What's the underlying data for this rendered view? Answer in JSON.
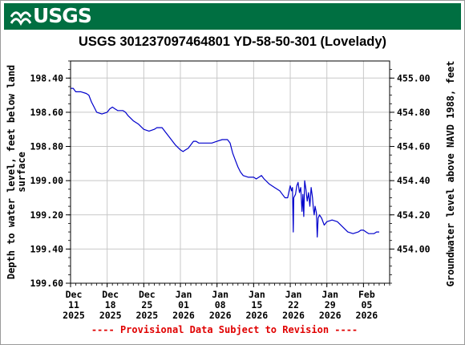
{
  "header": {
    "agency": "USGS",
    "brand_color": "#006f41"
  },
  "footer": {
    "notice": "---- Provisional Data Subject to Revision ----",
    "color": "#e00000"
  },
  "chart_data": {
    "type": "line",
    "title": "USGS 301237097464801 YD-58-50-301 (Lovelady)",
    "ylabel_left": "Depth to water level, feet below land surface",
    "ylabel_right": "Groundwater level above NAVD 1988, feet",
    "y_left_inverted": true,
    "ylim_left": [
      198.3,
      199.6
    ],
    "yticks_left": [
      "198.40",
      "198.60",
      "198.80",
      "199.00",
      "199.20",
      "199.40",
      "199.60"
    ],
    "yticks_left_values": [
      198.4,
      198.6,
      198.8,
      199.0,
      199.2,
      199.4,
      199.6
    ],
    "yticks_right": [
      "455.00",
      "454.80",
      "454.60",
      "454.40",
      "454.20",
      "454.00"
    ],
    "yticks_right_values": [
      455.0,
      454.8,
      454.6,
      454.4,
      454.2,
      454.0
    ],
    "right_axis_offset": 653.4,
    "xlim": [
      "2025-12-11",
      "2026-02-10"
    ],
    "xticks": [
      {
        "date": "2025-12-11",
        "l1": "Dec",
        "l2": "11",
        "l3": "2025"
      },
      {
        "date": "2025-12-18",
        "l1": "Dec",
        "l2": "18",
        "l3": "2025"
      },
      {
        "date": "2025-12-25",
        "l1": "Dec",
        "l2": "25",
        "l3": "2025"
      },
      {
        "date": "2026-01-01",
        "l1": "Jan",
        "l2": "01",
        "l3": "2026"
      },
      {
        "date": "2026-01-08",
        "l1": "Jan",
        "l2": "08",
        "l3": "2026"
      },
      {
        "date": "2026-01-15",
        "l1": "Jan",
        "l2": "15",
        "l3": "2026"
      },
      {
        "date": "2026-01-22",
        "l1": "Jan",
        "l2": "22",
        "l3": "2026"
      },
      {
        "date": "2026-01-29",
        "l1": "Jan",
        "l2": "29",
        "l3": "2026"
      },
      {
        "date": "2026-02-05",
        "l1": "Feb",
        "l2": "05",
        "l3": "2026"
      }
    ],
    "grid": true,
    "series": [
      {
        "color": "#0000cc",
        "points": [
          [
            "2025-12-11T00:00",
            198.46
          ],
          [
            "2025-12-11T12:00",
            198.46
          ],
          [
            "2025-12-12T00:00",
            198.48
          ],
          [
            "2025-12-13T00:00",
            198.48
          ],
          [
            "2025-12-14T00:00",
            198.49
          ],
          [
            "2025-12-14T12:00",
            198.5
          ],
          [
            "2025-12-15T00:00",
            198.54
          ],
          [
            "2025-12-15T12:00",
            198.57
          ],
          [
            "2025-12-16T00:00",
            198.6
          ],
          [
            "2025-12-17T00:00",
            198.61
          ],
          [
            "2025-12-18T00:00",
            198.6
          ],
          [
            "2025-12-18T12:00",
            198.58
          ],
          [
            "2025-12-19T00:00",
            198.57
          ],
          [
            "2025-12-19T12:00",
            198.58
          ],
          [
            "2025-12-20T00:00",
            198.59
          ],
          [
            "2025-12-21T00:00",
            198.59
          ],
          [
            "2025-12-21T12:00",
            198.6
          ],
          [
            "2025-12-22T00:00",
            198.62
          ],
          [
            "2025-12-23T00:00",
            198.65
          ],
          [
            "2025-12-24T00:00",
            198.67
          ],
          [
            "2025-12-25T00:00",
            198.7
          ],
          [
            "2025-12-26T00:00",
            198.71
          ],
          [
            "2025-12-27T00:00",
            198.7
          ],
          [
            "2025-12-27T12:00",
            198.69
          ],
          [
            "2025-12-28T00:00",
            198.69
          ],
          [
            "2025-12-28T12:00",
            198.69
          ],
          [
            "2025-12-29T00:00",
            198.71
          ],
          [
            "2025-12-30T00:00",
            198.75
          ],
          [
            "2025-12-31T00:00",
            198.79
          ],
          [
            "2026-01-01T00:00",
            198.82
          ],
          [
            "2026-01-01T12:00",
            198.83
          ],
          [
            "2026-01-02T00:00",
            198.82
          ],
          [
            "2026-01-02T12:00",
            198.81
          ],
          [
            "2026-01-03T00:00",
            198.79
          ],
          [
            "2026-01-03T12:00",
            198.77
          ],
          [
            "2026-01-04T00:00",
            198.77
          ],
          [
            "2026-01-04T12:00",
            198.78
          ],
          [
            "2026-01-05T00:00",
            198.78
          ],
          [
            "2026-01-06T00:00",
            198.78
          ],
          [
            "2026-01-07T00:00",
            198.78
          ],
          [
            "2026-01-08T00:00",
            198.77
          ],
          [
            "2026-01-09T00:00",
            198.76
          ],
          [
            "2026-01-10T00:00",
            198.76
          ],
          [
            "2026-01-10T12:00",
            198.78
          ],
          [
            "2026-01-11T00:00",
            198.84
          ],
          [
            "2026-01-11T12:00",
            198.88
          ],
          [
            "2026-01-12T00:00",
            198.92
          ],
          [
            "2026-01-12T12:00",
            198.95
          ],
          [
            "2026-01-13T00:00",
            198.97
          ],
          [
            "2026-01-14T00:00",
            198.98
          ],
          [
            "2026-01-15T00:00",
            198.98
          ],
          [
            "2026-01-15T12:00",
            198.99
          ],
          [
            "2026-01-16T00:00",
            198.98
          ],
          [
            "2026-01-16T12:00",
            198.97
          ],
          [
            "2026-01-17T00:00",
            198.99
          ],
          [
            "2026-01-18T00:00",
            199.02
          ],
          [
            "2026-01-19T00:00",
            199.04
          ],
          [
            "2026-01-20T00:00",
            199.06
          ],
          [
            "2026-01-20T12:00",
            199.08
          ],
          [
            "2026-01-21T00:00",
            199.1
          ],
          [
            "2026-01-21T12:00",
            199.1
          ],
          [
            "2026-01-22T00:00",
            199.03
          ],
          [
            "2026-01-22T06:00",
            199.06
          ],
          [
            "2026-01-22T10:00",
            199.04
          ],
          [
            "2026-01-22T14:00",
            199.3
          ],
          [
            "2026-01-22T16:00",
            199.1
          ],
          [
            "2026-01-23T00:00",
            199.08
          ],
          [
            "2026-01-23T06:00",
            199.03
          ],
          [
            "2026-01-23T12:00",
            199.01
          ],
          [
            "2026-01-23T18:00",
            199.07
          ],
          [
            "2026-01-24T00:00",
            199.04
          ],
          [
            "2026-01-24T06:00",
            199.18
          ],
          [
            "2026-01-24T10:00",
            199.08
          ],
          [
            "2026-01-24T14:00",
            199.21
          ],
          [
            "2026-01-24T18:00",
            199.0
          ],
          [
            "2026-01-25T00:00",
            199.05
          ],
          [
            "2026-01-25T06:00",
            199.12
          ],
          [
            "2026-01-25T12:00",
            199.07
          ],
          [
            "2026-01-25T18:00",
            199.15
          ],
          [
            "2026-01-26T00:00",
            199.04
          ],
          [
            "2026-01-26T06:00",
            199.1
          ],
          [
            "2026-01-26T10:00",
            199.16
          ],
          [
            "2026-01-26T14:00",
            199.2
          ],
          [
            "2026-01-26T18:00",
            199.15
          ],
          [
            "2026-01-27T00:00",
            199.19
          ],
          [
            "2026-01-27T04:00",
            199.33
          ],
          [
            "2026-01-27T08:00",
            199.22
          ],
          [
            "2026-01-27T14:00",
            199.2
          ],
          [
            "2026-01-28T00:00",
            199.22
          ],
          [
            "2026-01-28T12:00",
            199.26
          ],
          [
            "2026-01-29T00:00",
            199.24
          ],
          [
            "2026-01-30T00:00",
            199.23
          ],
          [
            "2026-01-31T00:00",
            199.24
          ],
          [
            "2026-02-01T00:00",
            199.27
          ],
          [
            "2026-02-02T00:00",
            199.3
          ],
          [
            "2026-02-03T00:00",
            199.31
          ],
          [
            "2026-02-04T00:00",
            199.3
          ],
          [
            "2026-02-04T12:00",
            199.29
          ],
          [
            "2026-02-05T00:00",
            199.29
          ],
          [
            "2026-02-05T12:00",
            199.3
          ],
          [
            "2026-02-06T00:00",
            199.31
          ],
          [
            "2026-02-07T00:00",
            199.31
          ],
          [
            "2026-02-07T12:00",
            199.3
          ],
          [
            "2026-02-08T00:00",
            199.3
          ]
        ]
      }
    ]
  }
}
